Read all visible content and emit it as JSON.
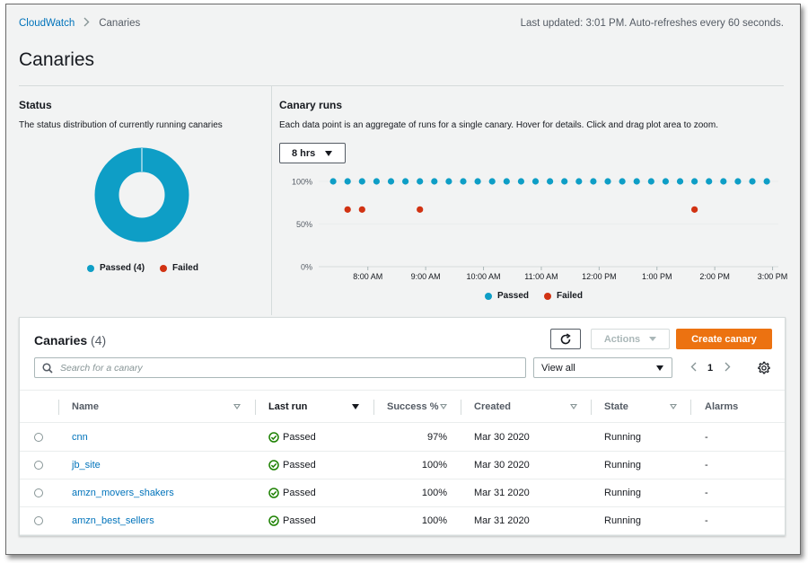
{
  "breadcrumb": {
    "root": "CloudWatch",
    "current": "Canaries"
  },
  "last_updated": "Last updated: 3:01 PM. Auto-refreshes every 60 seconds.",
  "page_title": "Canaries",
  "status": {
    "title": "Status",
    "description": "The status distribution of currently running canaries",
    "legend": {
      "passed": "Passed (4)",
      "failed": "Failed"
    },
    "passed_count": 4,
    "failed_count": 0,
    "colors": {
      "passed": "#0e9ec6",
      "failed": "#d13212"
    }
  },
  "canary_runs": {
    "title": "Canary runs",
    "description": "Each data point is an aggregate of runs for a single canary. Hover for details. Click and drag plot area to zoom.",
    "range_label": "8 hrs",
    "legend": {
      "passed": "Passed",
      "failed": "Failed"
    }
  },
  "chart_data": {
    "type": "scatter",
    "y_tick_labels": [
      "100%",
      "50%",
      "0%"
    ],
    "x_tick_labels": [
      "8:00 AM",
      "9:00 AM",
      "10:00 AM",
      "11:00 AM",
      "12:00 PM",
      "1:00 PM",
      "2:00 PM",
      "3:00 PM"
    ],
    "ylim": [
      0,
      100
    ],
    "xlim_hours": [
      7.15,
      15.1
    ],
    "series": [
      {
        "name": "Passed",
        "color": "#0e9ec6",
        "y": 100,
        "x_hours": [
          7.4,
          7.65,
          7.9,
          8.15,
          8.4,
          8.65,
          8.9,
          9.15,
          9.4,
          9.65,
          9.9,
          10.15,
          10.4,
          10.65,
          10.9,
          11.15,
          11.4,
          11.65,
          11.9,
          12.15,
          12.4,
          12.65,
          12.9,
          13.15,
          13.4,
          13.65,
          13.9,
          14.15,
          14.4,
          14.65,
          14.9
        ]
      },
      {
        "name": "Failed",
        "color": "#d13212",
        "y": 67,
        "x_hours": [
          7.65,
          7.9,
          8.9,
          13.65
        ]
      }
    ]
  },
  "table": {
    "title": "Canaries",
    "count": "(4)",
    "actions_label": "Actions",
    "create_label": "Create canary",
    "search_placeholder": "Search for a canary",
    "filter_value": "View all",
    "page": "1",
    "columns": {
      "name": "Name",
      "last_run": "Last run",
      "success": "Success %",
      "created": "Created",
      "state": "State",
      "alarms": "Alarms"
    },
    "rows": [
      {
        "name": "cnn",
        "last_run": "Passed",
        "success": "97%",
        "created": "Mar 30 2020",
        "state": "Running",
        "alarms": "-"
      },
      {
        "name": "jb_site",
        "last_run": "Passed",
        "success": "100%",
        "created": "Mar 30 2020",
        "state": "Running",
        "alarms": "-"
      },
      {
        "name": "amzn_movers_shakers",
        "last_run": "Passed",
        "success": "100%",
        "created": "Mar 31 2020",
        "state": "Running",
        "alarms": "-"
      },
      {
        "name": "amzn_best_sellers",
        "last_run": "Passed",
        "success": "100%",
        "created": "Mar 31 2020",
        "state": "Running",
        "alarms": "-"
      }
    ]
  }
}
